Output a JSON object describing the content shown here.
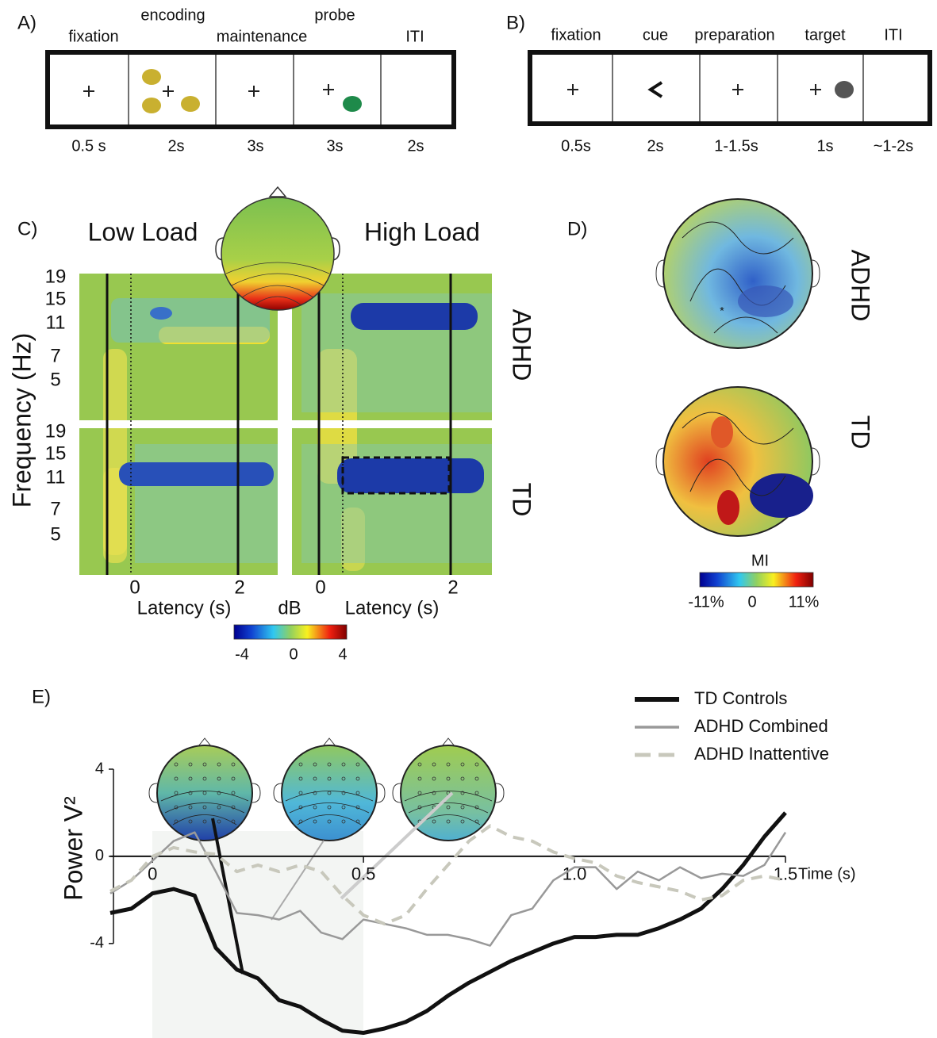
{
  "panel_a": {
    "label": "A)",
    "phases": [
      {
        "name": "fixation",
        "duration": "0.5 s"
      },
      {
        "name": "encoding",
        "duration": "2s"
      },
      {
        "name": "maintenance",
        "duration": "3s"
      },
      {
        "name": "probe",
        "duration": "3s"
      },
      {
        "name": "ITI",
        "duration": "2s"
      }
    ]
  },
  "panel_b": {
    "label": "B)",
    "phases": [
      {
        "name": "fixation",
        "duration": "0.5s"
      },
      {
        "name": "cue",
        "duration": "2s"
      },
      {
        "name": "preparation",
        "duration": "1-1.5s"
      },
      {
        "name": "target",
        "duration": "1s"
      },
      {
        "name": "ITI",
        "duration": "~1-2s"
      }
    ]
  },
  "panel_c": {
    "label": "C)",
    "conditions": [
      "Low Load",
      "High Load"
    ],
    "y_label": "Frequency (Hz)",
    "frequency_ticks": [
      "19",
      "15",
      "11",
      "7",
      "5"
    ],
    "groups": [
      "ADHD",
      "TD"
    ],
    "latency_ticks": [
      "0",
      "2"
    ],
    "x_label": "Latency (s)",
    "colorbar": {
      "title": "dB",
      "ticks": [
        "-4",
        "0",
        "4"
      ]
    }
  },
  "panel_d": {
    "label": "D)",
    "groups": [
      "ADHD",
      "TD"
    ],
    "colorbar": {
      "title": "MI",
      "ticks": [
        "-11%",
        "0",
        "11%"
      ]
    }
  },
  "chart_data": {
    "type": "line",
    "panel_label": "E)",
    "y_label": "Power V²",
    "x_label": "Time (s)",
    "x": [
      -0.1,
      -0.05,
      0,
      0.05,
      0.1,
      0.15,
      0.2,
      0.25,
      0.3,
      0.35,
      0.4,
      0.45,
      0.5,
      0.55,
      0.6,
      0.65,
      0.7,
      0.75,
      0.8,
      0.85,
      0.9,
      0.95,
      1.0,
      1.05,
      1.1,
      1.15,
      1.2,
      1.25,
      1.3,
      1.35,
      1.4,
      1.45,
      1.5
    ],
    "series": [
      {
        "name": "TD Controls",
        "color": "#111111",
        "width": 5,
        "dashed": false,
        "values": [
          -2.6,
          -2.4,
          -1.7,
          -1.5,
          -1.8,
          -4.2,
          -5.2,
          -5.6,
          -6.6,
          -6.9,
          -7.5,
          -8.0,
          -8.1,
          -7.9,
          -7.6,
          -7.1,
          -6.4,
          -5.8,
          -5.3,
          -4.8,
          -4.4,
          -4.0,
          -3.7,
          -3.7,
          -3.6,
          -3.6,
          -3.3,
          -2.9,
          -2.4,
          -1.5,
          -0.4,
          0.9,
          2.0
        ]
      },
      {
        "name": "ADHD Combined",
        "color": "#999999",
        "width": 2.5,
        "dashed": false,
        "values": [
          -1.7,
          -1.1,
          -0.2,
          0.7,
          1.1,
          -0.7,
          -2.6,
          -2.7,
          -2.9,
          -2.5,
          -3.5,
          -3.8,
          -2.9,
          -3.1,
          -3.3,
          -3.6,
          -3.6,
          -3.8,
          -4.1,
          -2.7,
          -2.4,
          -1.1,
          -0.5,
          -0.5,
          -1.5,
          -0.7,
          -1.1,
          -0.5,
          -1.0,
          -0.8,
          -0.9,
          -0.4,
          1.1
        ]
      },
      {
        "name": "ADHD Inattentive",
        "color": "#c8c8bc",
        "width": 4,
        "dashed": true,
        "values": [
          -1.6,
          -1.1,
          0,
          0.4,
          0.2,
          0.1,
          -0.7,
          -0.4,
          -0.7,
          -0.4,
          -0.7,
          -1.8,
          -2.7,
          -3.1,
          -2.7,
          -1.5,
          -0.4,
          0.7,
          1.4,
          0.9,
          0.7,
          0.2,
          -0.1,
          -0.3,
          -0.9,
          -1.2,
          -1.4,
          -1.6,
          -2.0,
          -1.8,
          -1.1,
          -0.9,
          -1.1
        ]
      }
    ],
    "xlim": [
      -0.1,
      1.5
    ],
    "ylim": [
      -8.3,
      4
    ],
    "xticks": [
      0,
      0.5,
      {
        "value": 1,
        "label": "1.0"
      },
      1.5
    ],
    "yticks": [
      -4,
      0,
      4
    ]
  }
}
